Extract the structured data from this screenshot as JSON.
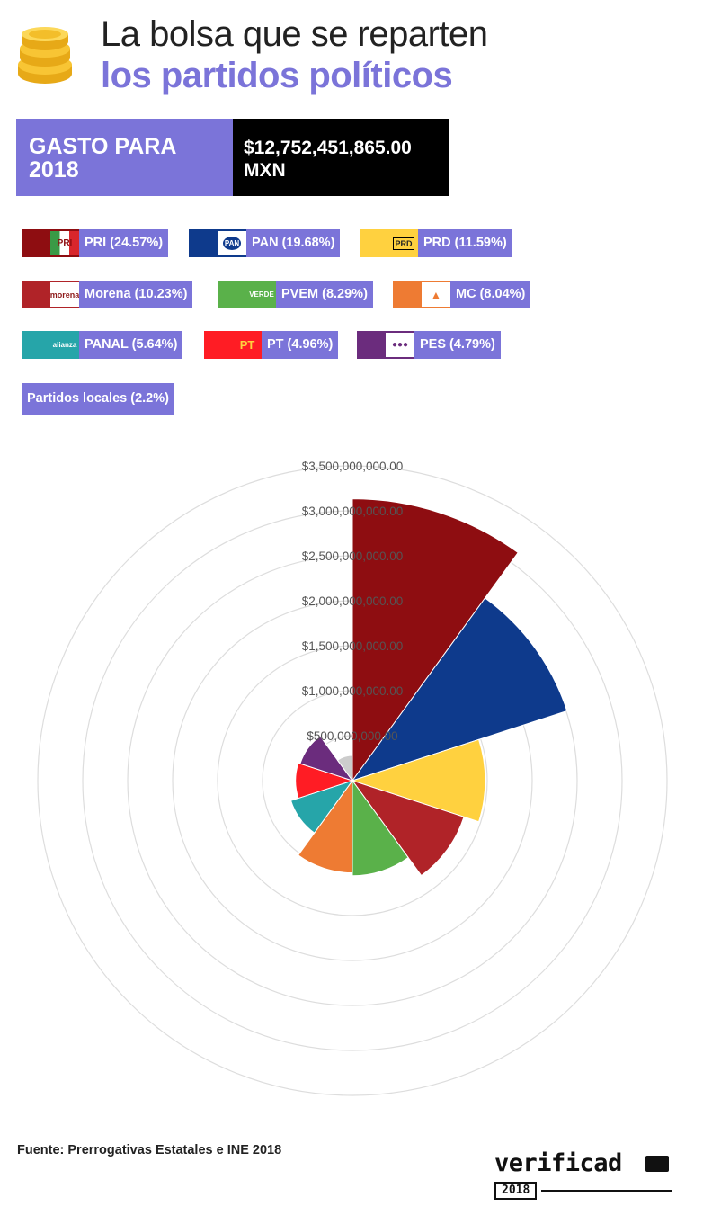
{
  "title": {
    "line1": "La bolsa que se reparten",
    "line2": "los partidos políticos"
  },
  "gasto": {
    "label": "GASTO PARA 2018",
    "amount": "$12,752,451,865.00 MXN"
  },
  "legend": [
    {
      "label": "PRI (24.57%)",
      "color": "#8e0d11",
      "logo": "PRI"
    },
    {
      "label": "PAN (19.68%)",
      "color": "#0e3a8c",
      "logo": "PAN"
    },
    {
      "label": "PRD (11.59%)",
      "color": "#ffd13f",
      "logo": "PRD"
    },
    {
      "label": "Morena (10.23%)",
      "color": "#b02328",
      "logo": "morena"
    },
    {
      "label": "PVEM (8.29%)",
      "color": "#5ab14a",
      "logo": "VERDE"
    },
    {
      "label": "MC (8.04%)",
      "color": "#ee7b33",
      "logo": "MC"
    },
    {
      "label": "PANAL (5.64%)",
      "color": "#26a5a9",
      "logo": "alianza"
    },
    {
      "label": "PT (4.96%)",
      "color": "#ff1c24",
      "logo": "PT"
    },
    {
      "label": "PES (4.79%)",
      "color": "#6b2c7d",
      "logo": "PES"
    }
  ],
  "local_parties": {
    "label": "Partidos locales (2.2%)",
    "color": "#cccccc"
  },
  "chart_data": {
    "type": "polar-area",
    "categories": [
      "PRI",
      "PAN",
      "PRD",
      "Morena",
      "PVEM",
      "MC",
      "PANAL",
      "PT",
      "PES",
      "Partidos locales"
    ],
    "values": [
      3133300000,
      2509700000,
      1478000000,
      1304600000,
      1057200000,
      1025300000,
      719300000,
      632500000,
      610900000,
      280600000
    ],
    "colors": [
      "#8e0d11",
      "#0e3a8c",
      "#ffd13f",
      "#b02328",
      "#5ab14a",
      "#ee7b33",
      "#26a5a9",
      "#ff1c24",
      "#6b2c7d",
      "#cccccc"
    ],
    "r_ticks": [
      "$500,000,000.00",
      "$1,000,000,000.00",
      "$1,500,000,000.00",
      "$2,000,000,000.00",
      "$2,500,000,000.00",
      "$3,000,000,000.00",
      "$3,500,000,000.00"
    ],
    "r_tick_values": [
      500000000,
      1000000000,
      1500000000,
      2000000000,
      2500000000,
      3000000000,
      3500000000
    ],
    "rmax": 3500000000,
    "grid": true
  },
  "source": "Fuente: Prerrogativas Estatales e INE 2018",
  "brand": {
    "name": "verificad",
    "year": "2018"
  }
}
